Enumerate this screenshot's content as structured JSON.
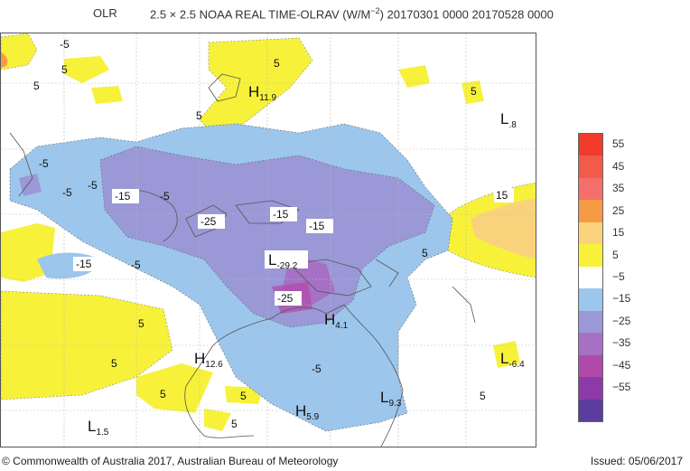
{
  "title": {
    "variable": "OLR",
    "description": "2.5 × 2.5 NOAA REAL TIME-OLRAV (W/M",
    "exponent": "−2",
    "period": ") 20170301 0000 20170528 0000"
  },
  "legend": {
    "entries": [
      {
        "label": "55",
        "color": "#f03a2a"
      },
      {
        "label": "45",
        "color": "#f25a4a"
      },
      {
        "label": "35",
        "color": "#f46f6a"
      },
      {
        "label": "25",
        "color": "#f79a44"
      },
      {
        "label": "15",
        "color": "#fbd27c"
      },
      {
        "label": "5",
        "color": "#f7f13a"
      },
      {
        "label": "−5",
        "color": "#ffffff"
      },
      {
        "label": "−15",
        "color": "#9cc6ec"
      },
      {
        "label": "−25",
        "color": "#9a98d6"
      },
      {
        "label": "−35",
        "color": "#a671c4"
      },
      {
        "label": "−45",
        "color": "#b04aaa"
      },
      {
        "label": "−55",
        "color": "#8d3aa8"
      },
      {
        "label": "",
        "color": "#5c3d9e"
      }
    ]
  },
  "map_labels": {
    "l1": "5",
    "l2": "5",
    "l3": "-5",
    "l4": "5",
    "l5": "5",
    "l6": "5",
    "l7": "-5",
    "l8": "-5",
    "l9": "-5",
    "l10": "-15",
    "l11": "-5",
    "l12": "-25",
    "l13": "-15",
    "l14": "-15",
    "l15": "15",
    "l16": "5",
    "l17": "-15",
    "l18": "-5",
    "l19": "-25",
    "l20": "5",
    "l21": "5",
    "l22": "-5",
    "l23": "5",
    "l24": "5",
    "l25": "5",
    "l26": "5"
  },
  "pressure_centres": [
    {
      "letter": "H",
      "value": "11.9"
    },
    {
      "letter": "L",
      "value": ".8"
    },
    {
      "letter": "L",
      "value": "-29.2"
    },
    {
      "letter": "H",
      "value": "4.1"
    },
    {
      "letter": "H",
      "value": "12.6"
    },
    {
      "letter": "L",
      "value": "-6.4"
    },
    {
      "letter": "L",
      "value": "9.3"
    },
    {
      "letter": "H",
      "value": "5.9"
    },
    {
      "letter": "L",
      "value": "1.5"
    }
  ],
  "footer": {
    "copyright": "© Commonwealth of Australia 2017, Australian Bureau of Meteorology",
    "issued": "Issued: 05/06/2017"
  }
}
